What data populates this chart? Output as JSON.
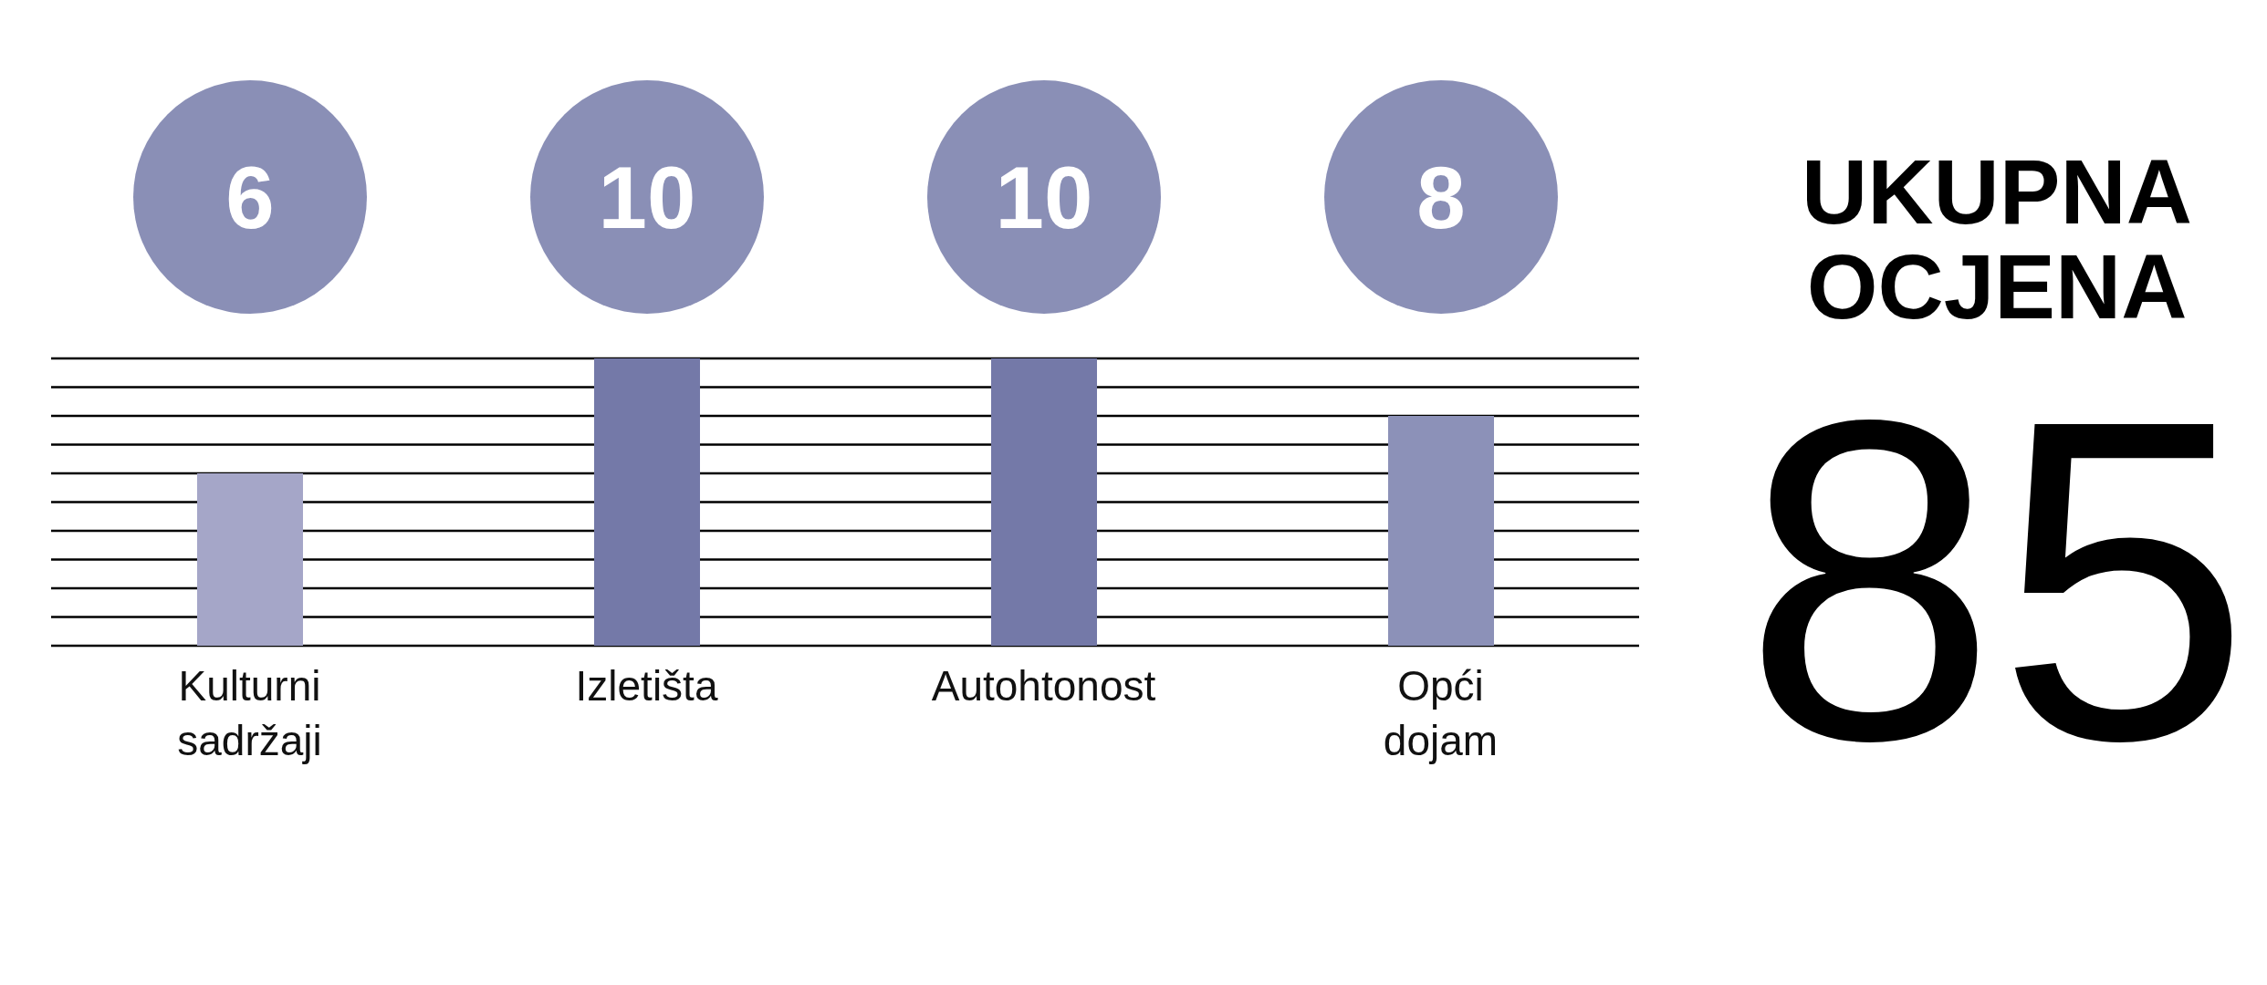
{
  "chart_data": [
    {
      "type": "bar",
      "categories": [
        "Kulturni sadržaji",
        "Izletišta",
        "Autohtonost",
        "Opći dojam"
      ],
      "values": [
        6,
        10,
        10,
        8
      ],
      "colors": [
        "#a5a6c8",
        "#7479a8",
        "#7479a8",
        "#8c91b8"
      ],
      "ylim": [
        0,
        10
      ],
      "yticks": [
        0,
        1,
        2,
        3,
        4,
        5,
        6,
        7,
        8,
        9,
        10
      ],
      "grid": "y",
      "tick_labels": "x",
      "data_labels": true
    },
    {
      "type": "other",
      "title": "UKUPNA OCJENA",
      "annotations": [
        "85"
      ]
    }
  ]
}
